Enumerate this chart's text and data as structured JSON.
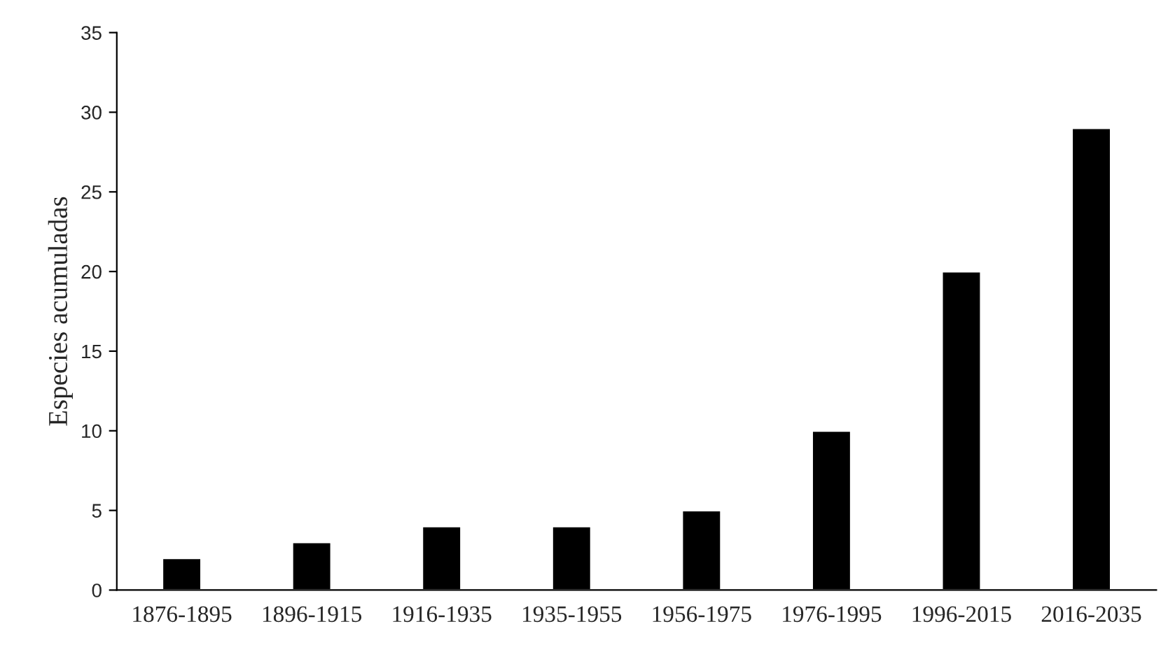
{
  "chart_data": {
    "type": "bar",
    "ylabel": "Especies acumuladas",
    "categories": [
      "1876-1895",
      "1896-1915",
      "1916-1935",
      "1935-1955",
      "1956-1975",
      "1976-1995",
      "1996-2015",
      "2016-2035"
    ],
    "values": [
      2,
      3,
      4,
      4,
      5,
      10,
      20,
      29
    ],
    "color": "#000000",
    "ylim": [
      0,
      35
    ],
    "yticks": [
      0,
      5,
      10,
      15,
      20,
      25,
      30,
      35
    ],
    "grid": false,
    "legend": false
  }
}
